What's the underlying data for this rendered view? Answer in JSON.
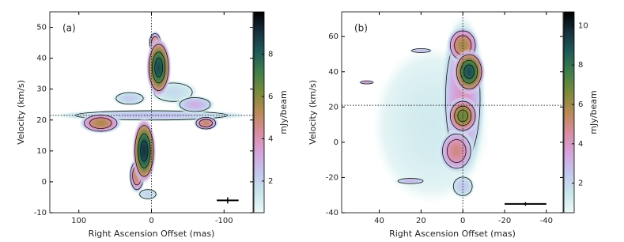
{
  "chart_data": [
    {
      "type": "pv-map",
      "label": "(a)",
      "xlabel": "Right Ascension Offset (mas)",
      "ylabel": "Velocity (km/s)",
      "clabel": "mJy/beam",
      "xlim": [
        140,
        -140
      ],
      "ylim": [
        -10,
        55
      ],
      "xticks": [
        100,
        0,
        -100
      ],
      "yticks": [
        -10,
        0,
        10,
        20,
        30,
        40,
        50
      ],
      "clim": [
        0.5,
        10
      ],
      "cticks": [
        2,
        4,
        6,
        8
      ],
      "colormap": [
        "#eef9f8",
        "#c8e6ec",
        "#c2c6ee",
        "#d6a2dc",
        "#d98ca0",
        "#b98a55",
        "#7a8a3a",
        "#3f7f4a",
        "#1f5a58",
        "#17303f",
        "#000000"
      ],
      "reference": {
        "x": 0,
        "y": 21.5
      },
      "beam": {
        "x": -105,
        "y": -6,
        "xerr": 15,
        "yerr": 1
      },
      "components": [
        {
          "x": 0,
          "y": 21.5,
          "dx": 140,
          "dy": 2,
          "peak": 2.5
        },
        {
          "x": -30,
          "y": 29,
          "dx": 35,
          "dy": 4,
          "peak": 1.8
        },
        {
          "x": 30,
          "y": 27,
          "dx": 25,
          "dy": 2.5,
          "peak": 2.2
        },
        {
          "x": 70,
          "y": 19,
          "dx": 30,
          "dy": 3.5,
          "peak": 5.5
        },
        {
          "x": -75,
          "y": 19,
          "dx": 18,
          "dy": 2.5,
          "peak": 5
        },
        {
          "x": -60,
          "y": 25,
          "dx": 28,
          "dy": 3,
          "peak": 3
        },
        {
          "x": -5,
          "y": 45,
          "dx": 10,
          "dy": 4,
          "peak": 5
        },
        {
          "x": -10,
          "y": 37,
          "dx": 18,
          "dy": 10,
          "peak": 8.5
        },
        {
          "x": 20,
          "y": 2,
          "dx": 12,
          "dy": 6,
          "peak": 5
        },
        {
          "x": 10,
          "y": 10,
          "dx": 17,
          "dy": 11,
          "peak": 9
        },
        {
          "x": 5,
          "y": -4,
          "dx": 15,
          "dy": 2,
          "peak": 2
        }
      ]
    },
    {
      "type": "pv-map",
      "label": "(b)",
      "xlabel": "Right Ascension Offset (mas)",
      "ylabel": "Velocity (km/s)",
      "clabel": "mJy/beam",
      "xlim": [
        58,
        -48
      ],
      "ylim": [
        -40,
        74
      ],
      "xticks": [
        40,
        20,
        0,
        -20,
        -40
      ],
      "yticks": [
        -40,
        -20,
        0,
        20,
        40,
        60
      ],
      "clim": [
        0.5,
        10.7
      ],
      "cticks": [
        2,
        4,
        6,
        8,
        10
      ],
      "colormap": [
        "#eef9f8",
        "#c8e6ec",
        "#c2c6ee",
        "#d6a2dc",
        "#d98ca0",
        "#b98a55",
        "#7a8a3a",
        "#3f7f4a",
        "#1f5a58",
        "#17303f",
        "#000000"
      ],
      "reference": {
        "x": 0,
        "y": 21
      },
      "beam": {
        "x": -30,
        "y": -35,
        "xerr": 10,
        "yerr": 1
      },
      "components": [
        {
          "x": 15,
          "y": 10,
          "dx": 28,
          "dy": 45,
          "peak": 1.3
        },
        {
          "x": 0,
          "y": 25,
          "dx": 11,
          "dy": 48,
          "peak": 4
        },
        {
          "x": 0,
          "y": -25,
          "dx": 6,
          "dy": 7,
          "peak": 2.5
        },
        {
          "x": 3,
          "y": -5,
          "dx": 9,
          "dy": 13,
          "peak": 5
        },
        {
          "x": 0,
          "y": 15,
          "dx": 8,
          "dy": 11,
          "peak": 7
        },
        {
          "x": 0,
          "y": 55,
          "dx": 8,
          "dy": 11,
          "peak": 6
        },
        {
          "x": -3,
          "y": 40,
          "dx": 8,
          "dy": 13,
          "peak": 9
        },
        {
          "x": 46,
          "y": 34,
          "dx": 4,
          "dy": 1.2,
          "peak": 4
        },
        {
          "x": 25,
          "y": -22,
          "dx": 8,
          "dy": 2,
          "peak": 3
        },
        {
          "x": 20,
          "y": 52,
          "dx": 6,
          "dy": 1.5,
          "peak": 3
        }
      ]
    }
  ]
}
